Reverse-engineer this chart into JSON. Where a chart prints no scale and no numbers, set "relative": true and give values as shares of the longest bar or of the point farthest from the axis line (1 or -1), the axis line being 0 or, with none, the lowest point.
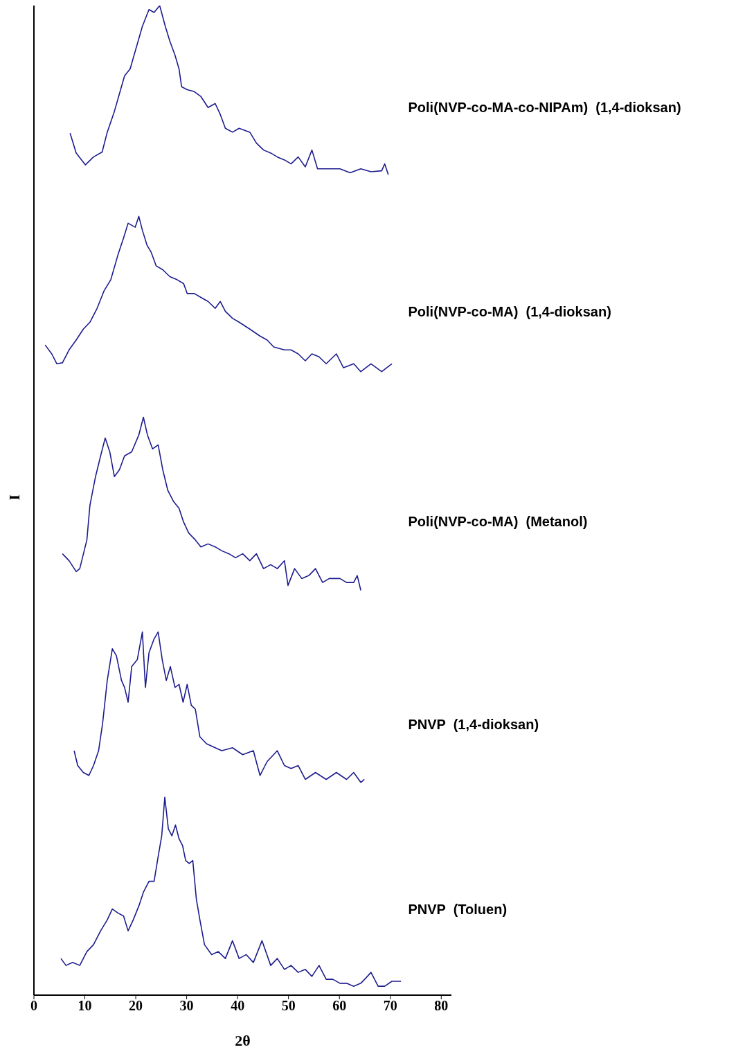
{
  "chart_data": {
    "type": "line",
    "relative": true,
    "xlabel": "2θ",
    "ylabel": "I",
    "xlim": [
      0,
      82
    ],
    "xticks": [
      0,
      10,
      20,
      30,
      40,
      50,
      60,
      70,
      80
    ],
    "marker": "none",
    "series": [
      {
        "name": "Poli(NVP-co-MA-co-NIPAm)  (1,4-dioksan)",
        "color": "#1c1c8e",
        "x": [
          7.1,
          8.3,
          10.1,
          11.7,
          13.4,
          14.4,
          15.8,
          16.8,
          17.8,
          18.9,
          19.9,
          21.3,
          22.6,
          23.6,
          24.7,
          25.8,
          26.7,
          27.7,
          28.5,
          29.0,
          30.1,
          31.5,
          32.8,
          34.2,
          35.6,
          36.6,
          37.6,
          39.0,
          40.3,
          42.4,
          43.7,
          45.1,
          46.5,
          47.8,
          49.2,
          50.5,
          51.9,
          53.3,
          54.6,
          55.7,
          57.4,
          60.1,
          62.1,
          64.2,
          66.2,
          68.3,
          68.9,
          69.6
        ],
        "values": [
          0.871,
          0.851,
          0.839,
          0.847,
          0.852,
          0.872,
          0.893,
          0.911,
          0.929,
          0.936,
          0.954,
          0.979,
          0.996,
          0.993,
          1,
          0.979,
          0.964,
          0.95,
          0.936,
          0.918,
          0.915,
          0.913,
          0.908,
          0.897,
          0.901,
          0.89,
          0.876,
          0.872,
          0.876,
          0.872,
          0.861,
          0.854,
          0.851,
          0.847,
          0.844,
          0.84,
          0.847,
          0.837,
          0.854,
          0.835,
          0.835,
          0.835,
          0.831,
          0.835,
          0.832,
          0.833,
          0.84,
          0.829
        ]
      },
      {
        "name": "Poli(NVP-co-MA)  (1,4-dioksan)",
        "color": "#1c1c8e",
        "x": [
          2.2,
          3.5,
          4.5,
          5.6,
          6.9,
          8.3,
          9.7,
          11.0,
          12.4,
          13.8,
          15.1,
          16.5,
          17.6,
          18.5,
          19.9,
          20.6,
          21.3,
          22.2,
          23.0,
          24.0,
          25.3,
          26.7,
          28.1,
          29.4,
          30.1,
          31.5,
          32.8,
          34.2,
          35.6,
          36.6,
          37.6,
          39.0,
          40.3,
          42.4,
          44.4,
          45.8,
          47.1,
          49.2,
          50.5,
          51.9,
          53.3,
          54.6,
          56.0,
          57.4,
          59.4,
          60.8,
          62.8,
          64.2,
          66.2,
          68.3,
          70.3
        ],
        "values": [
          0.657,
          0.648,
          0.638,
          0.639,
          0.652,
          0.662,
          0.673,
          0.68,
          0.694,
          0.712,
          0.723,
          0.748,
          0.765,
          0.78,
          0.776,
          0.787,
          0.773,
          0.758,
          0.751,
          0.737,
          0.733,
          0.726,
          0.723,
          0.719,
          0.709,
          0.709,
          0.705,
          0.701,
          0.694,
          0.701,
          0.691,
          0.684,
          0.68,
          0.673,
          0.666,
          0.662,
          0.655,
          0.652,
          0.652,
          0.648,
          0.641,
          0.648,
          0.645,
          0.638,
          0.648,
          0.634,
          0.638,
          0.63,
          0.638,
          0.63,
          0.638
        ]
      },
      {
        "name": "Poli(NVP-co-MA)  (Metanol)",
        "color": "#1c1c8e",
        "x": [
          5.6,
          6.9,
          8.3,
          9.0,
          10.4,
          11.0,
          12.1,
          13.1,
          14.0,
          14.9,
          15.8,
          16.8,
          17.8,
          19.2,
          20.6,
          21.5,
          22.3,
          23.3,
          24.4,
          25.3,
          26.3,
          27.4,
          28.5,
          29.4,
          30.4,
          31.7,
          32.8,
          34.2,
          35.6,
          36.9,
          38.3,
          39.6,
          41.0,
          42.4,
          43.7,
          45.1,
          46.5,
          47.8,
          49.2,
          49.9,
          51.2,
          52.6,
          54.0,
          55.3,
          56.7,
          58.0,
          60.1,
          61.4,
          62.8,
          63.5,
          64.2
        ],
        "values": [
          0.446,
          0.439,
          0.428,
          0.431,
          0.46,
          0.495,
          0.524,
          0.545,
          0.563,
          0.549,
          0.524,
          0.531,
          0.545,
          0.549,
          0.566,
          0.584,
          0.566,
          0.552,
          0.556,
          0.531,
          0.51,
          0.499,
          0.492,
          0.478,
          0.467,
          0.46,
          0.453,
          0.456,
          0.453,
          0.449,
          0.446,
          0.442,
          0.446,
          0.439,
          0.446,
          0.431,
          0.435,
          0.431,
          0.439,
          0.414,
          0.431,
          0.421,
          0.424,
          0.431,
          0.417,
          0.421,
          0.421,
          0.417,
          0.417,
          0.424,
          0.409
        ]
      },
      {
        "name": "PNVP  (1,4-dioksan)",
        "color": "#1c1c8e",
        "x": [
          7.9,
          8.6,
          9.7,
          10.8,
          11.7,
          12.7,
          13.5,
          14.4,
          15.4,
          16.2,
          17.2,
          17.8,
          18.5,
          19.2,
          20.3,
          21.3,
          21.9,
          22.6,
          23.6,
          24.4,
          25.2,
          26.0,
          26.8,
          27.7,
          28.5,
          29.3,
          30.1,
          30.9,
          31.7,
          32.6,
          33.9,
          35.6,
          36.9,
          39.0,
          41.0,
          43.1,
          44.4,
          45.8,
          47.8,
          49.2,
          50.5,
          51.9,
          53.3,
          55.3,
          57.4,
          59.4,
          61.4,
          62.8,
          64.2,
          64.9
        ],
        "values": [
          0.247,
          0.232,
          0.225,
          0.222,
          0.232,
          0.247,
          0.275,
          0.318,
          0.35,
          0.343,
          0.318,
          0.311,
          0.296,
          0.332,
          0.339,
          0.367,
          0.311,
          0.346,
          0.36,
          0.367,
          0.339,
          0.318,
          0.332,
          0.311,
          0.314,
          0.296,
          0.314,
          0.293,
          0.289,
          0.261,
          0.254,
          0.25,
          0.247,
          0.25,
          0.243,
          0.247,
          0.222,
          0.236,
          0.247,
          0.232,
          0.229,
          0.232,
          0.218,
          0.225,
          0.218,
          0.225,
          0.218,
          0.225,
          0.215,
          0.218
        ]
      },
      {
        "name": "PNVP  (Toluen)",
        "color": "#1c1c8e",
        "x": [
          5.3,
          6.3,
          7.6,
          9.0,
          10.4,
          11.7,
          13.1,
          14.4,
          15.4,
          16.5,
          17.6,
          18.5,
          19.5,
          20.6,
          21.5,
          22.6,
          23.6,
          24.4,
          25.1,
          25.7,
          26.4,
          27.1,
          27.8,
          28.5,
          29.2,
          29.8,
          30.5,
          31.2,
          31.9,
          32.6,
          33.5,
          34.9,
          36.2,
          37.6,
          39.0,
          40.3,
          41.7,
          43.1,
          44.8,
          46.5,
          47.8,
          49.2,
          50.5,
          51.9,
          53.3,
          54.6,
          56.0,
          57.4,
          58.7,
          60.1,
          61.4,
          62.8,
          64.2,
          65.5,
          66.2,
          67.6,
          68.9,
          70.3,
          72.1
        ],
        "values": [
          0.037,
          0.03,
          0.033,
          0.03,
          0.044,
          0.051,
          0.065,
          0.076,
          0.087,
          0.083,
          0.08,
          0.065,
          0.076,
          0.09,
          0.104,
          0.115,
          0.115,
          0.14,
          0.161,
          0.2,
          0.168,
          0.161,
          0.172,
          0.158,
          0.151,
          0.136,
          0.133,
          0.136,
          0.097,
          0.076,
          0.051,
          0.041,
          0.044,
          0.037,
          0.055,
          0.037,
          0.041,
          0.033,
          0.055,
          0.03,
          0.037,
          0.026,
          0.03,
          0.023,
          0.026,
          0.019,
          0.03,
          0.016,
          0.016,
          0.012,
          0.012,
          0.009,
          0.012,
          0.019,
          0.023,
          0.009,
          0.009,
          0.014,
          0.014
        ]
      }
    ]
  }
}
